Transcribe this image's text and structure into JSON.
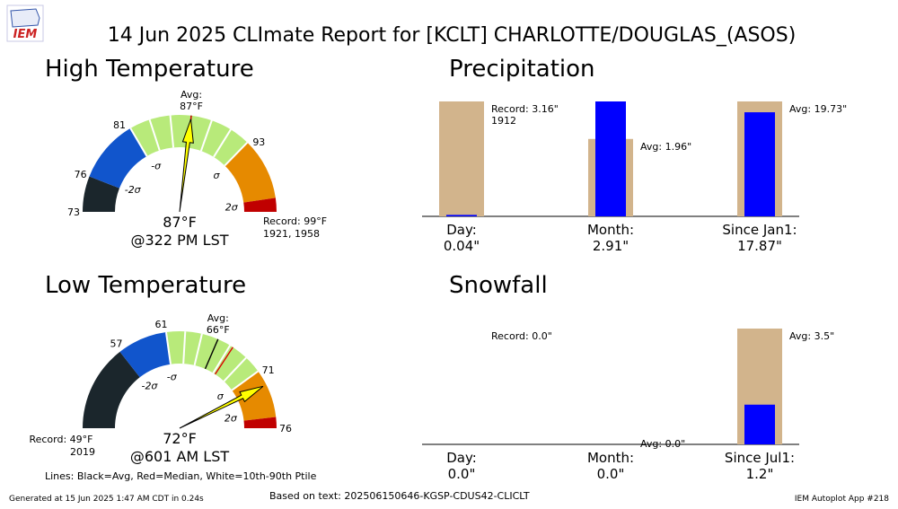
{
  "title": "14 Jun 2025 CLImate Report for [KCLT] CHARLOTTE/DOUGLAS_(ASOS)",
  "logo_text": "IEM",
  "footer": {
    "generated": "Generated at 15 Jun 2025 1:47 AM CDT in 0.24s",
    "based_on": "Based on text: 202506150646-KGSP-CDUS42-CLICLT",
    "app": "IEM Autoplot App #218"
  },
  "legend_note": "Lines: Black=Avg, Red=Median, White=10th-90th Ptile",
  "colors": {
    "below_2sigma": "#1b262c",
    "below_1sigma": "#1155cc",
    "normal": "#b8ea7a",
    "above_1sigma": "#e68a00",
    "above_2sigma": "#c00000",
    "needle": "#ffff00",
    "bar_avg": "#d2b48c",
    "bar_obs": "#0000ff"
  },
  "chart_data": [
    {
      "type": "gauge",
      "id": "high",
      "title": "High Temperature",
      "range": [
        73,
        99
      ],
      "avg": 87,
      "median": 87,
      "ptile10": 81,
      "ptile90": 93,
      "tick_labels": [
        {
          "value": 73,
          "label": "73"
        },
        {
          "value": 76,
          "label": "76"
        },
        {
          "value": 81,
          "label": "81"
        },
        {
          "value": 93,
          "label": "93"
        }
      ],
      "sigma_labels": [
        {
          "value": 76.7,
          "label": "-2σ"
        },
        {
          "value": 82.1,
          "label": "-σ"
        },
        {
          "value": 92.5,
          "label": "σ"
        },
        {
          "value": 98.2,
          "label": "2σ"
        }
      ],
      "bands": [
        {
          "from": 73,
          "to": 76.1,
          "color": "below_2sigma"
        },
        {
          "from": 76.1,
          "to": 81.6,
          "color": "below_1sigma"
        },
        {
          "from": 81.6,
          "to": 92.4,
          "color": "normal"
        },
        {
          "from": 92.4,
          "to": 97.8,
          "color": "above_1sigma"
        },
        {
          "from": 97.8,
          "to": 99,
          "color": "above_2sigma"
        }
      ],
      "white_lines": [
        81.6,
        83.4,
        85.2,
        88.8,
        90.6,
        92.4
      ],
      "observed": 87,
      "avg_label": [
        "Avg:",
        "87°F"
      ],
      "value_label": "87°F",
      "time_label": "@322 PM LST",
      "record_label": [
        "Record: 99°F",
        "1921, 1958"
      ],
      "record_side": "right"
    },
    {
      "type": "gauge",
      "id": "low",
      "title": "Low Temperature",
      "range": [
        49,
        76
      ],
      "avg": 66,
      "median": 67.5,
      "ptile10": 61,
      "ptile90": 71,
      "tick_labels": [
        {
          "value": 57,
          "label": "57"
        },
        {
          "value": 61,
          "label": "61"
        },
        {
          "value": 71,
          "label": "71"
        },
        {
          "value": 76,
          "label": "76"
        }
      ],
      "sigma_labels": [
        {
          "value": 57.2,
          "label": "-2σ"
        },
        {
          "value": 61.2,
          "label": "-σ"
        },
        {
          "value": 70.2,
          "label": "σ"
        },
        {
          "value": 74.3,
          "label": "2σ"
        }
      ],
      "bands": [
        {
          "from": 49,
          "to": 56.8,
          "color": "below_2sigma"
        },
        {
          "from": 56.8,
          "to": 61.3,
          "color": "below_1sigma"
        },
        {
          "from": 61.3,
          "to": 70.6,
          "color": "normal"
        },
        {
          "from": 70.6,
          "to": 75,
          "color": "above_1sigma"
        },
        {
          "from": 75,
          "to": 76,
          "color": "above_2sigma"
        }
      ],
      "white_lines": [
        61.3,
        63.0,
        64.5,
        67.2,
        69.0,
        70.6
      ],
      "observed": 72,
      "avg_label": [
        "Avg:",
        "66°F"
      ],
      "value_label": "72°F",
      "time_label": "@601 AM LST",
      "record_label": [
        "Record: 49°F",
        "2019"
      ],
      "record_side": "left"
    },
    {
      "type": "bar",
      "id": "precip",
      "title": "Precipitation",
      "categories": [
        {
          "label": "Day:",
          "value_text": "0.04\"",
          "avg": 3.16,
          "obs": 0.04,
          "annotation": [
            "Record: 3.16\"",
            "1912"
          ],
          "scale": 3.16
        },
        {
          "label": "Month:",
          "value_text": "2.91\"",
          "avg": 1.96,
          "obs": 2.91,
          "annotation": [
            "Avg: 1.96\""
          ],
          "scale": 2.91
        },
        {
          "label": "Since Jan1:",
          "value_text": "17.87\"",
          "avg": 19.73,
          "obs": 17.87,
          "annotation": [
            "Avg: 19.73\""
          ],
          "scale": 19.73
        }
      ]
    },
    {
      "type": "bar",
      "id": "snow",
      "title": "Snowfall",
      "categories": [
        {
          "label": "Day:",
          "value_text": "0.0\"",
          "avg": 0.0,
          "obs": 0.0,
          "annotation": [
            "Record: 0.0\""
          ],
          "scale": 1
        },
        {
          "label": "Month:",
          "value_text": "0.0\"",
          "avg": 0.0,
          "obs": 0.0,
          "annotation": [
            "Avg: 0.0\""
          ],
          "scale": 1
        },
        {
          "label": "Since Jul1:",
          "value_text": "1.2\"",
          "avg": 3.5,
          "obs": 1.2,
          "annotation": [
            "Avg: 3.5\""
          ],
          "scale": 3.5
        }
      ]
    }
  ]
}
